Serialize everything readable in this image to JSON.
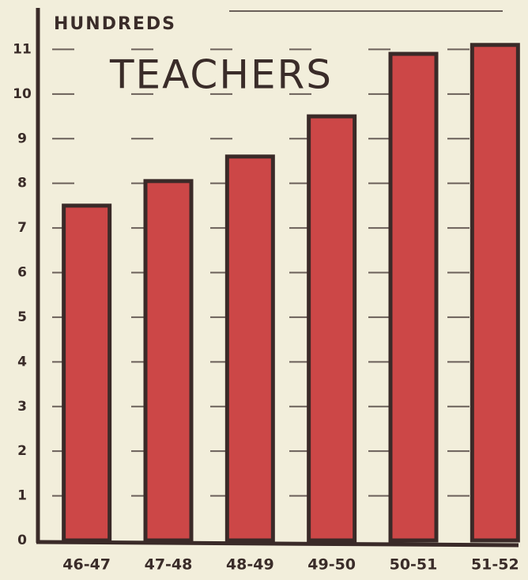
{
  "chart_data": {
    "type": "bar",
    "title": "TEACHERS",
    "y_label": "HUNDREDS",
    "categories": [
      "46-47",
      "47-48",
      "48-49",
      "49-50",
      "50-51",
      "51-52"
    ],
    "values": [
      7.5,
      8.05,
      8.6,
      9.5,
      10.9,
      11.1
    ],
    "color": "#cc4747",
    "ylim": [
      0,
      12
    ],
    "yticks": [
      0,
      1,
      2,
      3,
      4,
      5,
      6,
      7,
      8,
      9,
      10,
      11
    ],
    "grid": true
  }
}
